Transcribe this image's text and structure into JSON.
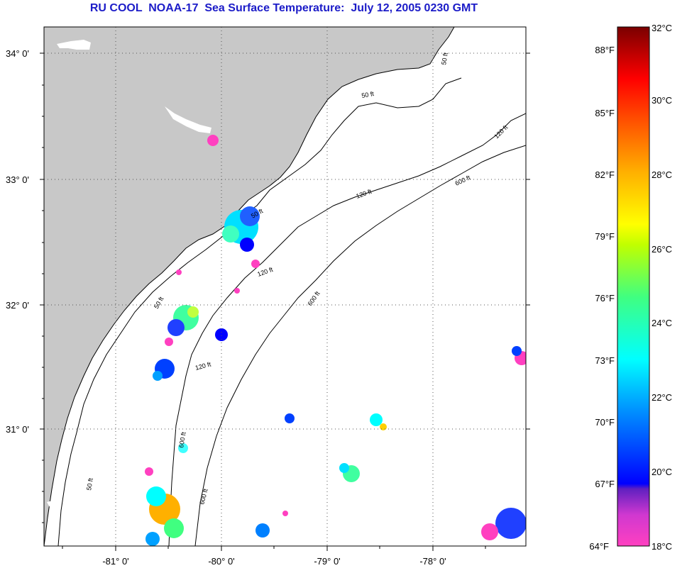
{
  "title": "RU COOL  NOAA-17  Sea Surface Temperature:  July 12, 2005 0230 GMT",
  "colors": {
    "land": "#c8c8c8",
    "ocean": "#ffffff",
    "title": "#1c1cc8",
    "contour": "#000000",
    "grid": "#555555"
  },
  "axes": {
    "latitude_labels": [
      "34° 0'",
      "33° 0'",
      "32° 0'",
      "31° 0'"
    ],
    "longitude_labels": [
      "-81° 0'",
      "-80° 0'",
      "-79° 0'",
      "-78° 0'"
    ]
  },
  "contour_labels": [
    "50 ft",
    "120 ft",
    "600 ft",
    "50 ft",
    "120 ft",
    "600 ft",
    "50 ft",
    "120 ft",
    "600 ft",
    "50 ft",
    "120 ft",
    "600 ft",
    "50 ft"
  ],
  "colorbar": {
    "celsius_labels": [
      "32°C",
      "30°C",
      "28°C",
      "26°C",
      "24°C",
      "22°C",
      "20°C",
      "18°C"
    ],
    "fahrenheit_labels": [
      "88°F",
      "85°F",
      "82°F",
      "79°F",
      "76°F",
      "73°F",
      "70°F",
      "67°F",
      "64°F"
    ],
    "stops": [
      "#ff40c0",
      "#b030d8",
      "#6020c0",
      "#0000ff",
      "#0080ff",
      "#00ffff",
      "#40ff80",
      "#c0ff00",
      "#ffff00",
      "#ffc000",
      "#ff8000",
      "#ff2000",
      "#ff0000",
      "#c00000",
      "#800000"
    ]
  }
}
